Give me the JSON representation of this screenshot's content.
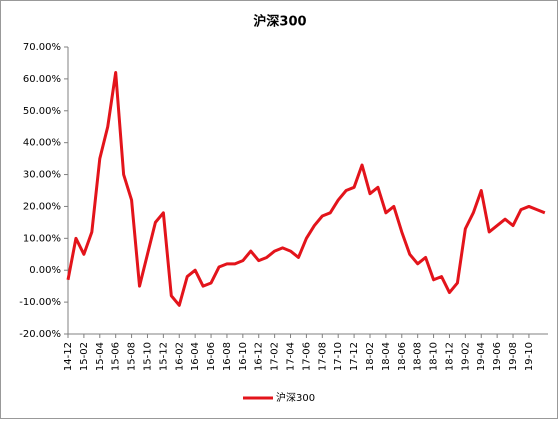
{
  "chart_data": {
    "type": "line",
    "title": "沪深300",
    "categories": [
      "14-12",
      null,
      "15-02",
      null,
      "15-04",
      null,
      "15-06",
      null,
      "15-08",
      null,
      "15-10",
      null,
      "15-12",
      null,
      "16-02",
      null,
      "16-04",
      null,
      "16-06",
      null,
      "16-08",
      null,
      "16-10",
      null,
      "16-12",
      null,
      "17-02",
      null,
      "17-04",
      null,
      "17-06",
      null,
      "17-08",
      null,
      "17-10",
      null,
      "17-12",
      null,
      "18-02",
      null,
      "18-04",
      null,
      "18-06",
      null,
      "18-08",
      null,
      "18-10",
      null,
      "18-12",
      null,
      "19-02",
      null,
      "19-04",
      null,
      "19-06",
      null,
      "19-08",
      null,
      "19-10",
      null,
      null
    ],
    "series": [
      {
        "name": "沪深300",
        "color": "#e3141b",
        "values": [
          -3,
          10,
          5,
          12,
          35,
          45,
          62,
          30,
          22,
          -5,
          5,
          15,
          18,
          -8,
          -11,
          -2,
          0,
          -5,
          -4,
          1,
          2,
          2,
          3,
          6,
          3,
          4,
          6,
          7,
          6,
          4,
          10,
          14,
          17,
          18,
          22,
          25,
          26,
          33,
          24,
          26,
          18,
          20,
          12,
          5,
          2,
          4,
          -3,
          -2,
          -7,
          -4,
          13,
          18,
          25,
          12,
          14,
          16,
          14,
          19,
          20,
          19,
          18
        ]
      }
    ],
    "ylim": [
      -20,
      70
    ],
    "yticks": [
      {
        "value": -20,
        "label": "-20.00%"
      },
      {
        "value": -10,
        "label": "-10.00%"
      },
      {
        "value": 0,
        "label": "0.00%"
      },
      {
        "value": 10,
        "label": "10.00%"
      },
      {
        "value": 20,
        "label": "20.00%"
      },
      {
        "value": 30,
        "label": "30.00%"
      },
      {
        "value": 40,
        "label": "40.00%"
      },
      {
        "value": 50,
        "label": "50.00%"
      },
      {
        "value": 60,
        "label": "60.00%"
      },
      {
        "value": 70,
        "label": "70.00%"
      }
    ],
    "grid": false,
    "legend": "bottom"
  }
}
